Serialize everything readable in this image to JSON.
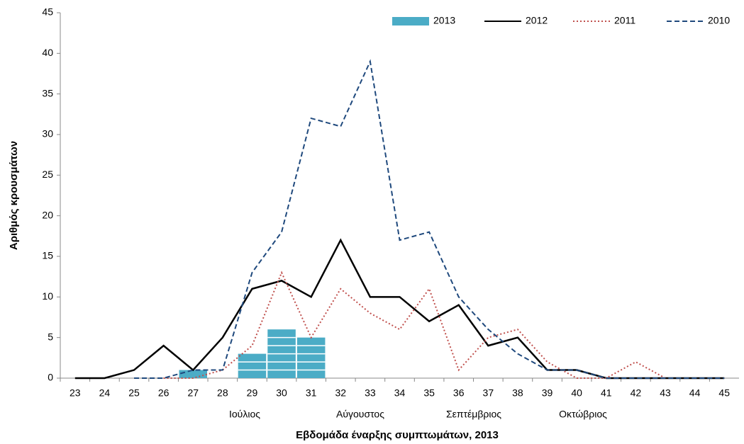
{
  "chart_data": {
    "type": "bar-line",
    "x_label": "Εβδομάδα έναρξης συμπτωμάτων, 2013",
    "y_label": "Αριθμός κρουσμάτων",
    "categories": [
      "23",
      "24",
      "25",
      "26",
      "27",
      "28",
      "29",
      "30",
      "31",
      "32",
      "33",
      "34",
      "35",
      "36",
      "37",
      "38",
      "39",
      "40",
      "41",
      "42",
      "43",
      "44",
      "45"
    ],
    "annotations": [
      "Ιούλιος",
      "Αύγουστος",
      "Σεπτέμβριος",
      "Οκτώβριος"
    ],
    "ylim": [
      0,
      45
    ],
    "yticks": [
      0,
      5,
      10,
      15,
      20,
      25,
      30,
      35,
      40,
      45
    ],
    "series": [
      {
        "name": "2013",
        "kind": "bar",
        "color": "#4bacc6",
        "values": [
          0,
          0,
          0,
          0,
          1,
          0,
          3,
          6,
          5,
          0,
          0,
          0,
          0,
          0,
          0,
          0,
          0,
          0,
          0,
          0,
          0,
          0,
          0
        ]
      },
      {
        "name": "2012",
        "kind": "line",
        "dash": "solid",
        "color": "#000000",
        "values": [
          0,
          0,
          1,
          4,
          1,
          5,
          11,
          12,
          10,
          17,
          10,
          10,
          7,
          9,
          4,
          5,
          1,
          1,
          0,
          0,
          0,
          0,
          0
        ]
      },
      {
        "name": "2011",
        "kind": "line",
        "dash": "dotted",
        "color": "#c0504d",
        "values": [
          null,
          null,
          null,
          0,
          0,
          1,
          4,
          13,
          5,
          11,
          8,
          6,
          11,
          1,
          5,
          6,
          2,
          0,
          0,
          2,
          0,
          null,
          null
        ]
      },
      {
        "name": "2010",
        "kind": "line",
        "dash": "dashed",
        "color": "#1f497d",
        "values": [
          null,
          null,
          0,
          0,
          1,
          1,
          13,
          18,
          32,
          31,
          39,
          17,
          18,
          10,
          6,
          3,
          1,
          1,
          0,
          0,
          0,
          0,
          0
        ]
      }
    ]
  }
}
